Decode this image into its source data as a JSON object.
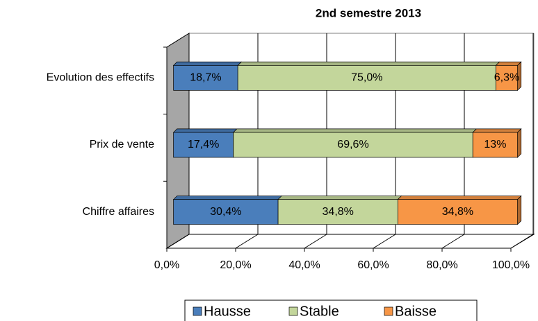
{
  "chart_data": {
    "type": "bar",
    "orientation": "horizontal",
    "stacked": true,
    "title": "2nd semestre 2013",
    "categories": [
      "Evolution des effectifs",
      "Prix de vente",
      "Chiffre affaires"
    ],
    "series": [
      {
        "name": "Hausse",
        "color": "#4a7ebb",
        "values": [
          18.7,
          17.4,
          30.4
        ],
        "value_labels": [
          "18,7%",
          "17,4%",
          "30,4%"
        ]
      },
      {
        "name": "Stable",
        "color": "#c3d69b",
        "values": [
          75.0,
          69.6,
          34.8
        ],
        "value_labels": [
          "75,0%",
          "69,6%",
          "34,8%"
        ]
      },
      {
        "name": "Baisse",
        "color": "#f79646",
        "values": [
          6.3,
          13,
          34.8
        ],
        "value_labels": [
          "6,3%",
          "13%",
          "34,8%"
        ]
      }
    ],
    "xlim": [
      0,
      100
    ],
    "xticks": [
      {
        "value": 0,
        "label": "0,0%"
      },
      {
        "value": 20,
        "label": "20,0%"
      },
      {
        "value": 40,
        "label": "40,0%"
      },
      {
        "value": 60,
        "label": "60,0%"
      },
      {
        "value": 80,
        "label": "80,0%"
      },
      {
        "value": 100,
        "label": "100,0%"
      }
    ],
    "grid": true,
    "legend": "bottom"
  }
}
